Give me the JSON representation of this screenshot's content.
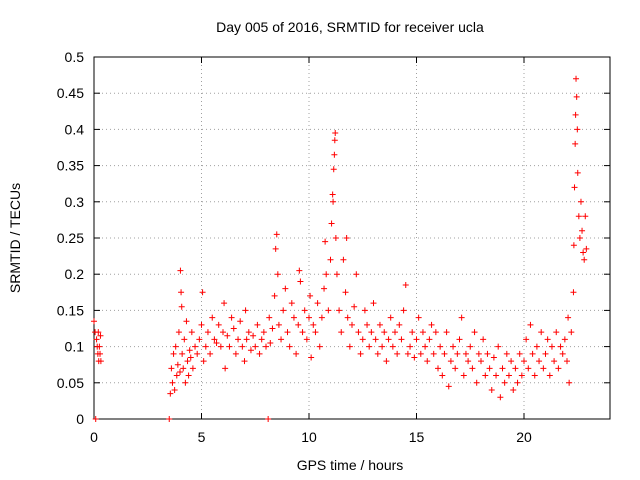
{
  "chart_data": {
    "type": "scatter",
    "title": "Day 005 of 2016, SRMTID for receiver ucla",
    "xlabel": "GPS time / hours",
    "ylabel": "SRMTID / TECUs",
    "xlim": [
      0,
      24
    ],
    "ylim": [
      0,
      0.5
    ],
    "x_ticks": [
      {
        "value": 0,
        "label": "0"
      },
      {
        "value": 5,
        "label": "5"
      },
      {
        "value": 10,
        "label": "10"
      },
      {
        "value": 15,
        "label": "15"
      },
      {
        "value": 20,
        "label": "20"
      }
    ],
    "y_ticks": [
      {
        "value": 0,
        "label": "0"
      },
      {
        "value": 0.05,
        "label": "0.05"
      },
      {
        "value": 0.1,
        "label": "0.1"
      },
      {
        "value": 0.15,
        "label": "0.15"
      },
      {
        "value": 0.2,
        "label": "0.2"
      },
      {
        "value": 0.25,
        "label": "0.25"
      },
      {
        "value": 0.3,
        "label": "0.3"
      },
      {
        "value": 0.35,
        "label": "0.35"
      },
      {
        "value": 0.4,
        "label": "0.4"
      },
      {
        "value": 0.45,
        "label": "0.45"
      },
      {
        "value": 0.5,
        "label": "0.5"
      }
    ],
    "grid": true,
    "marker": "plus",
    "color": "#ff0000",
    "series": [
      {
        "points": [
          [
            0.0,
            0.135
          ],
          [
            0.05,
            0.12
          ],
          [
            0.08,
            0.0
          ],
          [
            0.12,
            0.11
          ],
          [
            0.15,
            0.1
          ],
          [
            0.18,
            0.09
          ],
          [
            0.2,
            0.12
          ],
          [
            0.22,
            0.08
          ],
          [
            0.25,
            0.1
          ],
          [
            0.28,
            0.09
          ],
          [
            0.3,
            0.115
          ],
          [
            0.32,
            0.08
          ],
          [
            3.5,
            0.0
          ],
          [
            3.55,
            0.035
          ],
          [
            3.6,
            0.07
          ],
          [
            3.65,
            0.05
          ],
          [
            3.7,
            0.09
          ],
          [
            3.75,
            0.04
          ],
          [
            3.8,
            0.1
          ],
          [
            3.85,
            0.06
          ],
          [
            3.9,
            0.075
          ],
          [
            3.95,
            0.12
          ],
          [
            4.0,
            0.065
          ],
          [
            4.02,
            0.205
          ],
          [
            4.05,
            0.175
          ],
          [
            4.08,
            0.155
          ],
          [
            4.1,
            0.09
          ],
          [
            4.15,
            0.07
          ],
          [
            4.2,
            0.11
          ],
          [
            4.25,
            0.05
          ],
          [
            4.3,
            0.135
          ],
          [
            4.35,
            0.08
          ],
          [
            4.4,
            0.06
          ],
          [
            4.45,
            0.095
          ],
          [
            4.5,
            0.085
          ],
          [
            4.55,
            0.12
          ],
          [
            4.6,
            0.07
          ],
          [
            4.7,
            0.1
          ],
          [
            4.8,
            0.09
          ],
          [
            4.9,
            0.11
          ],
          [
            5.0,
            0.13
          ],
          [
            5.05,
            0.175
          ],
          [
            5.1,
            0.08
          ],
          [
            5.2,
            0.1
          ],
          [
            5.3,
            0.12
          ],
          [
            5.4,
            0.09
          ],
          [
            5.5,
            0.14
          ],
          [
            5.6,
            0.11
          ],
          [
            5.7,
            0.105
          ],
          [
            5.8,
            0.13
          ],
          [
            5.9,
            0.1
          ],
          [
            6.0,
            0.12
          ],
          [
            6.05,
            0.16
          ],
          [
            6.1,
            0.07
          ],
          [
            6.2,
            0.115
          ],
          [
            6.3,
            0.1
          ],
          [
            6.4,
            0.14
          ],
          [
            6.5,
            0.125
          ],
          [
            6.6,
            0.09
          ],
          [
            6.7,
            0.11
          ],
          [
            6.8,
            0.135
          ],
          [
            6.9,
            0.1
          ],
          [
            7.0,
            0.08
          ],
          [
            7.05,
            0.15
          ],
          [
            7.1,
            0.11
          ],
          [
            7.2,
            0.12
          ],
          [
            7.3,
            0.095
          ],
          [
            7.4,
            0.115
          ],
          [
            7.5,
            0.1
          ],
          [
            7.6,
            0.13
          ],
          [
            7.7,
            0.09
          ],
          [
            7.8,
            0.11
          ],
          [
            7.9,
            0.12
          ],
          [
            8.0,
            0.1
          ],
          [
            8.1,
            0.0
          ],
          [
            8.15,
            0.14
          ],
          [
            8.2,
            0.105
          ],
          [
            8.3,
            0.125
          ],
          [
            8.4,
            0.17
          ],
          [
            8.45,
            0.235
          ],
          [
            8.5,
            0.255
          ],
          [
            8.55,
            0.2
          ],
          [
            8.6,
            0.13
          ],
          [
            8.7,
            0.11
          ],
          [
            8.8,
            0.15
          ],
          [
            8.9,
            0.18
          ],
          [
            9.0,
            0.12
          ],
          [
            9.1,
            0.1
          ],
          [
            9.2,
            0.16
          ],
          [
            9.3,
            0.14
          ],
          [
            9.4,
            0.09
          ],
          [
            9.5,
            0.13
          ],
          [
            9.55,
            0.205
          ],
          [
            9.6,
            0.19
          ],
          [
            9.7,
            0.12
          ],
          [
            9.8,
            0.15
          ],
          [
            9.9,
            0.11
          ],
          [
            10.0,
            0.14
          ],
          [
            10.05,
            0.17
          ],
          [
            10.1,
            0.085
          ],
          [
            10.2,
            0.13
          ],
          [
            10.3,
            0.12
          ],
          [
            10.4,
            0.16
          ],
          [
            10.5,
            0.1
          ],
          [
            10.6,
            0.14
          ],
          [
            10.7,
            0.18
          ],
          [
            10.75,
            0.245
          ],
          [
            10.8,
            0.2
          ],
          [
            10.9,
            0.15
          ],
          [
            11.0,
            0.22
          ],
          [
            11.05,
            0.27
          ],
          [
            11.1,
            0.31
          ],
          [
            11.12,
            0.3
          ],
          [
            11.15,
            0.345
          ],
          [
            11.18,
            0.365
          ],
          [
            11.2,
            0.385
          ],
          [
            11.22,
            0.395
          ],
          [
            11.25,
            0.25
          ],
          [
            11.3,
            0.2
          ],
          [
            11.4,
            0.15
          ],
          [
            11.5,
            0.12
          ],
          [
            11.6,
            0.22
          ],
          [
            11.7,
            0.175
          ],
          [
            11.75,
            0.25
          ],
          [
            11.8,
            0.14
          ],
          [
            11.9,
            0.1
          ],
          [
            12.0,
            0.13
          ],
          [
            12.1,
            0.155
          ],
          [
            12.2,
            0.2
          ],
          [
            12.3,
            0.12
          ],
          [
            12.4,
            0.09
          ],
          [
            12.5,
            0.11
          ],
          [
            12.6,
            0.15
          ],
          [
            12.7,
            0.13
          ],
          [
            12.8,
            0.1
          ],
          [
            12.9,
            0.12
          ],
          [
            13.0,
            0.16
          ],
          [
            13.1,
            0.11
          ],
          [
            13.2,
            0.09
          ],
          [
            13.3,
            0.13
          ],
          [
            13.4,
            0.1
          ],
          [
            13.5,
            0.12
          ],
          [
            13.6,
            0.08
          ],
          [
            13.7,
            0.11
          ],
          [
            13.8,
            0.14
          ],
          [
            13.9,
            0.1
          ],
          [
            14.0,
            0.12
          ],
          [
            14.1,
            0.09
          ],
          [
            14.2,
            0.13
          ],
          [
            14.3,
            0.11
          ],
          [
            14.4,
            0.15
          ],
          [
            14.5,
            0.185
          ],
          [
            14.6,
            0.09
          ],
          [
            14.7,
            0.1
          ],
          [
            14.8,
            0.12
          ],
          [
            14.9,
            0.085
          ],
          [
            15.0,
            0.11
          ],
          [
            15.1,
            0.14
          ],
          [
            15.2,
            0.09
          ],
          [
            15.3,
            0.12
          ],
          [
            15.4,
            0.1
          ],
          [
            15.5,
            0.08
          ],
          [
            15.6,
            0.11
          ],
          [
            15.7,
            0.13
          ],
          [
            15.8,
            0.09
          ],
          [
            15.9,
            0.12
          ],
          [
            16.0,
            0.07
          ],
          [
            16.1,
            0.1
          ],
          [
            16.2,
            0.06
          ],
          [
            16.3,
            0.09
          ],
          [
            16.4,
            0.12
          ],
          [
            16.5,
            0.045
          ],
          [
            16.6,
            0.08
          ],
          [
            16.7,
            0.1
          ],
          [
            16.8,
            0.07
          ],
          [
            16.9,
            0.09
          ],
          [
            17.0,
            0.11
          ],
          [
            17.1,
            0.14
          ],
          [
            17.2,
            0.06
          ],
          [
            17.3,
            0.09
          ],
          [
            17.4,
            0.08
          ],
          [
            17.5,
            0.1
          ],
          [
            17.6,
            0.07
          ],
          [
            17.7,
            0.12
          ],
          [
            17.8,
            0.05
          ],
          [
            17.9,
            0.09
          ],
          [
            18.0,
            0.08
          ],
          [
            18.1,
            0.11
          ],
          [
            18.2,
            0.06
          ],
          [
            18.3,
            0.09
          ],
          [
            18.4,
            0.07
          ],
          [
            18.5,
            0.04
          ],
          [
            18.6,
            0.085
          ],
          [
            18.7,
            0.06
          ],
          [
            18.8,
            0.1
          ],
          [
            18.9,
            0.03
          ],
          [
            19.0,
            0.07
          ],
          [
            19.1,
            0.05
          ],
          [
            19.2,
            0.09
          ],
          [
            19.3,
            0.06
          ],
          [
            19.4,
            0.08
          ],
          [
            19.5,
            0.04
          ],
          [
            19.6,
            0.07
          ],
          [
            19.7,
            0.05
          ],
          [
            19.8,
            0.09
          ],
          [
            19.9,
            0.06
          ],
          [
            20.0,
            0.08
          ],
          [
            20.1,
            0.11
          ],
          [
            20.2,
            0.07
          ],
          [
            20.3,
            0.13
          ],
          [
            20.4,
            0.09
          ],
          [
            20.5,
            0.06
          ],
          [
            20.6,
            0.1
          ],
          [
            20.7,
            0.08
          ],
          [
            20.8,
            0.12
          ],
          [
            20.9,
            0.07
          ],
          [
            21.0,
            0.09
          ],
          [
            21.1,
            0.11
          ],
          [
            21.2,
            0.06
          ],
          [
            21.3,
            0.1
          ],
          [
            21.4,
            0.08
          ],
          [
            21.5,
            0.12
          ],
          [
            21.6,
            0.07
          ],
          [
            21.7,
            0.1
          ],
          [
            21.8,
            0.09
          ],
          [
            21.9,
            0.11
          ],
          [
            22.0,
            0.08
          ],
          [
            22.05,
            0.14
          ],
          [
            22.1,
            0.05
          ],
          [
            22.2,
            0.12
          ],
          [
            22.3,
            0.175
          ],
          [
            22.32,
            0.24
          ],
          [
            22.35,
            0.32
          ],
          [
            22.38,
            0.38
          ],
          [
            22.4,
            0.42
          ],
          [
            22.42,
            0.47
          ],
          [
            22.45,
            0.445
          ],
          [
            22.48,
            0.4
          ],
          [
            22.5,
            0.34
          ],
          [
            22.55,
            0.28
          ],
          [
            22.6,
            0.25
          ],
          [
            22.65,
            0.3
          ],
          [
            22.7,
            0.26
          ],
          [
            22.75,
            0.23
          ],
          [
            22.8,
            0.22
          ],
          [
            22.85,
            0.28
          ],
          [
            22.9,
            0.235
          ]
        ]
      }
    ]
  }
}
